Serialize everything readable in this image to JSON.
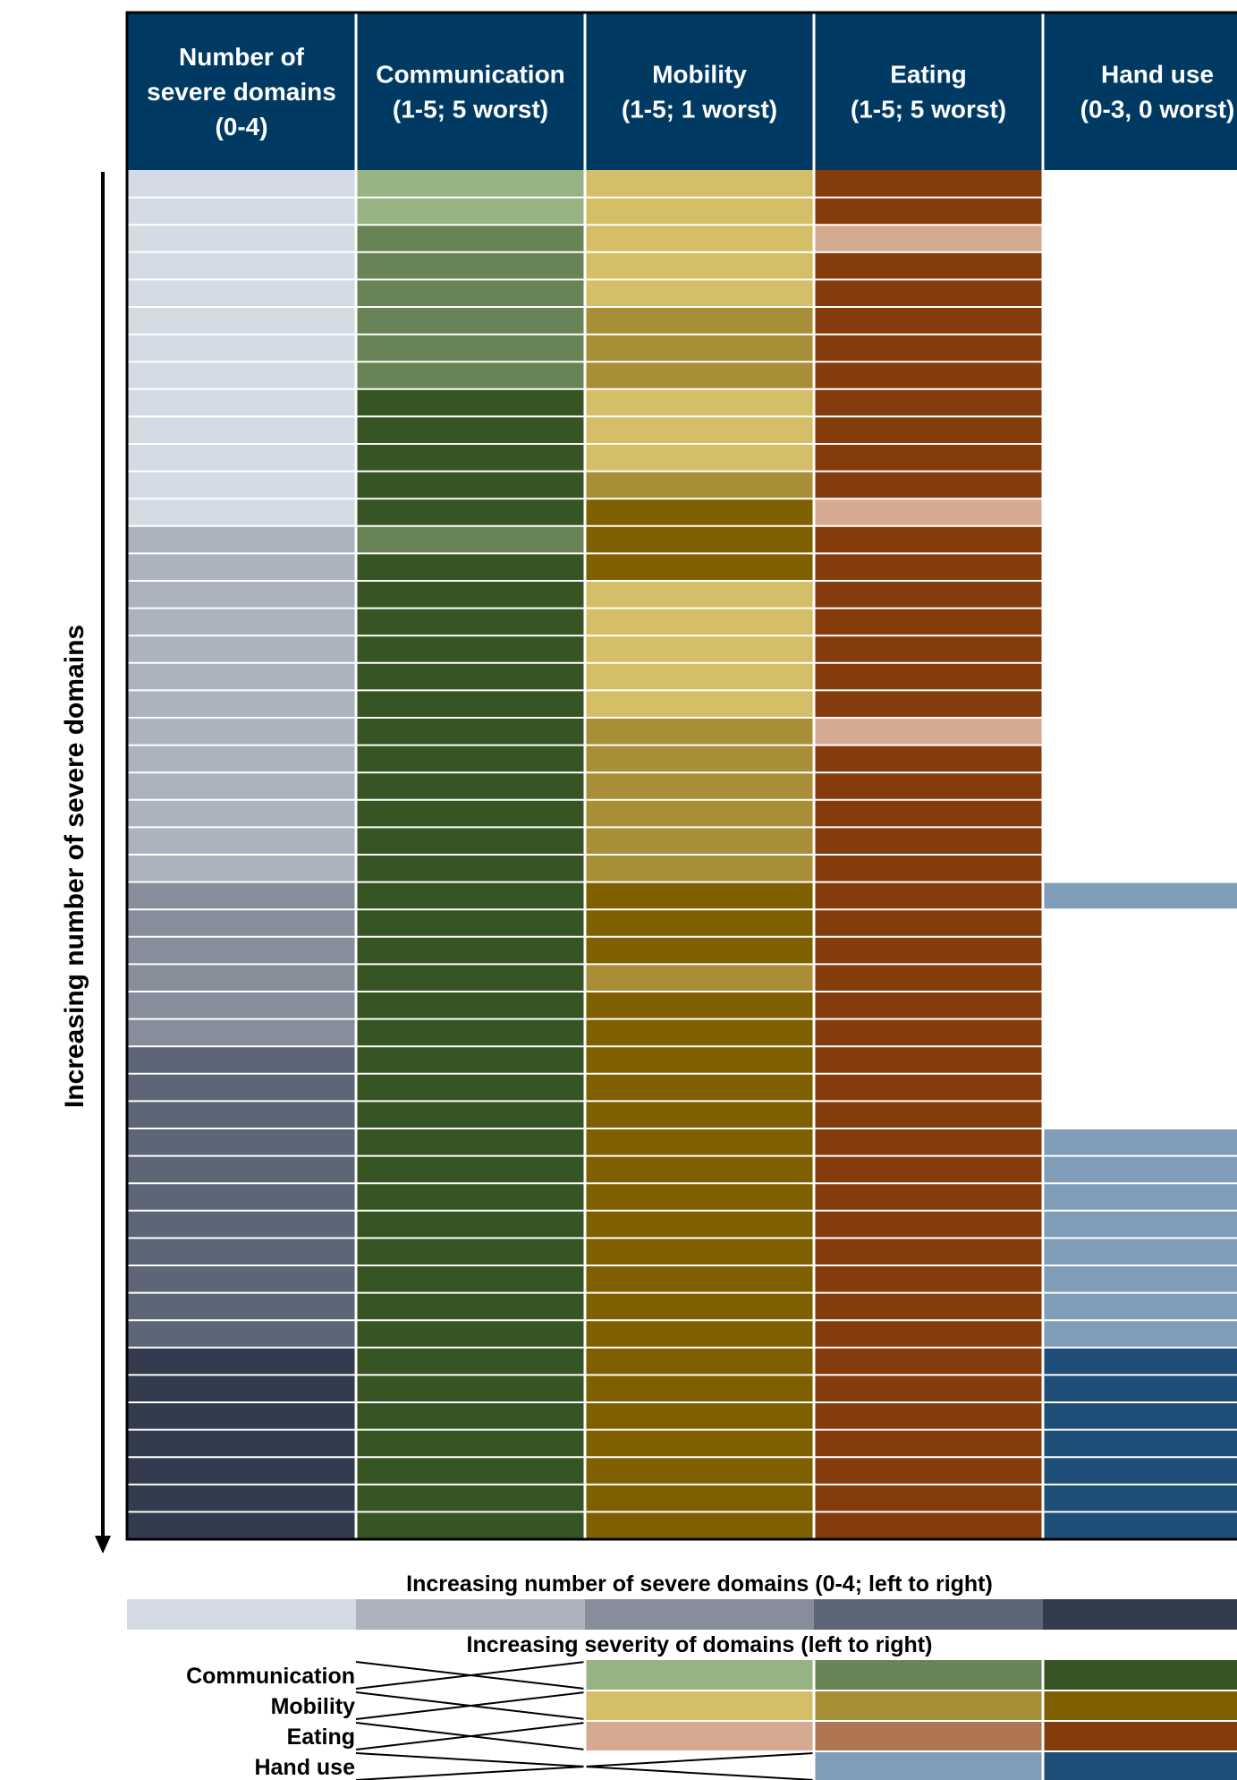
{
  "chart_data": {
    "type": "heatmap",
    "columns": [
      {
        "key": "domains",
        "lines": [
          "Number of",
          "severe domains",
          "(0-4)"
        ]
      },
      {
        "key": "communication",
        "lines": [
          "Communication",
          "(1-5; 5 worst)"
        ]
      },
      {
        "key": "mobility",
        "lines": [
          "Mobility",
          "(1-5; 1 worst)"
        ]
      },
      {
        "key": "eating",
        "lines": [
          "Eating",
          "(1-5; 5 worst)"
        ]
      },
      {
        "key": "hand_use",
        "lines": [
          "Hand use",
          "(0-3, 0 worst)"
        ]
      }
    ],
    "y_axis_label": "Increasing number of severe domains",
    "rows": [
      [
        0,
        1,
        1,
        3,
        0
      ],
      [
        0,
        1,
        1,
        3,
        0
      ],
      [
        0,
        2,
        1,
        1,
        0
      ],
      [
        0,
        2,
        1,
        3,
        0
      ],
      [
        0,
        2,
        1,
        3,
        0
      ],
      [
        0,
        2,
        2,
        3,
        0
      ],
      [
        0,
        2,
        2,
        3,
        0
      ],
      [
        0,
        2,
        2,
        4,
        0
      ],
      [
        0,
        3,
        1,
        3,
        0
      ],
      [
        0,
        3,
        1,
        3,
        0
      ],
      [
        0,
        3,
        1,
        3,
        0
      ],
      [
        0,
        3,
        2,
        4,
        0
      ],
      [
        0,
        3,
        3,
        1,
        0
      ],
      [
        1,
        2,
        4,
        4,
        0
      ],
      [
        1,
        3,
        4,
        4,
        0
      ],
      [
        1,
        4,
        1,
        3,
        0
      ],
      [
        1,
        4,
        1,
        3,
        0
      ],
      [
        1,
        4,
        1,
        3,
        0
      ],
      [
        1,
        4,
        1,
        4,
        0
      ],
      [
        1,
        4,
        1,
        4,
        0
      ],
      [
        1,
        4,
        2,
        1,
        0
      ],
      [
        1,
        4,
        2,
        3,
        0
      ],
      [
        1,
        4,
        2,
        3,
        0
      ],
      [
        1,
        4,
        2,
        3,
        0
      ],
      [
        1,
        4,
        2,
        4,
        0
      ],
      [
        1,
        4,
        2,
        4,
        0
      ],
      [
        2,
        3,
        4,
        5,
        2
      ],
      [
        2,
        3,
        4,
        5,
        0
      ],
      [
        2,
        4,
        4,
        4,
        0
      ],
      [
        2,
        4,
        2,
        5,
        0
      ],
      [
        2,
        4,
        4,
        4,
        0
      ],
      [
        2,
        4,
        4,
        4,
        0
      ],
      [
        3,
        4,
        4,
        5,
        0
      ],
      [
        3,
        4,
        4,
        5,
        0
      ],
      [
        3,
        4,
        4,
        5,
        0
      ],
      [
        3,
        4,
        4,
        5,
        2
      ],
      [
        3,
        4,
        4,
        5,
        2
      ],
      [
        3,
        4,
        4,
        5,
        2
      ],
      [
        3,
        4,
        4,
        5,
        2
      ],
      [
        3,
        4,
        4,
        5,
        2
      ],
      [
        3,
        4,
        4,
        5,
        2
      ],
      [
        3,
        4,
        4,
        5,
        2
      ],
      [
        3,
        4,
        4,
        5,
        2
      ],
      [
        4,
        4,
        4,
        5,
        3
      ],
      [
        4,
        4,
        4,
        5,
        3
      ],
      [
        4,
        4,
        4,
        5,
        3
      ],
      [
        4,
        4,
        4,
        5,
        3
      ],
      [
        4,
        4,
        4,
        5,
        3
      ],
      [
        4,
        4,
        4,
        5,
        3
      ],
      [
        4,
        4,
        4,
        5,
        3
      ]
    ],
    "palettes": {
      "domains": [
        "#d5dbe5",
        "#adb2bf",
        "#878d9b",
        "#5c6677",
        "#323c4e"
      ],
      "communication": [
        "#c5dfb3",
        "#97b283",
        "#688457",
        "#375524"
      ],
      "mobility": [
        "#fde99a",
        "#d4bf68",
        "#a88e36",
        "#7f6000"
      ],
      "eating": [
        "#fce4d7",
        "#d5aa90",
        "#ad7551",
        "#843c0d"
      ],
      "hand_use": [
        "#ffffff",
        "#dae7f5",
        "#7f9cb9",
        "#1f4e79"
      ]
    },
    "colors": {
      "header_bg": "#003a63",
      "grid_line": "#ffffff",
      "border": "#000000"
    },
    "legend": {
      "domains_title": "Increasing number of severe domains (0-4; left to right)",
      "severity_title": "Increasing severity of domains (left to right)",
      "rows": [
        {
          "label": "Communication",
          "palette": "communication",
          "start": 1
        },
        {
          "label": "Mobility",
          "palette": "mobility",
          "start": 1
        },
        {
          "label": "Eating",
          "palette": "eating",
          "start": 1
        },
        {
          "label": "Hand use",
          "palette": "hand_use",
          "start": 2
        }
      ]
    }
  }
}
